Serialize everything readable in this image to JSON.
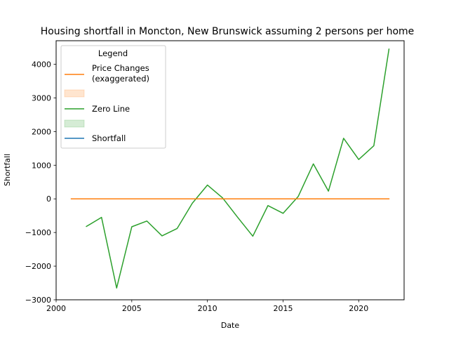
{
  "chart_data": {
    "type": "line",
    "title": "Housing shortfall in Moncton, New Brunswick assuming 2 persons per home",
    "xlabel": "Date",
    "ylabel": "Shortfall",
    "xlim": [
      2000,
      2023
    ],
    "ylim": [
      -3000,
      4700
    ],
    "xticks": [
      2000,
      2005,
      2010,
      2015,
      2020
    ],
    "xtick_labels": [
      "2000",
      "2005",
      "2010",
      "2015",
      "2020"
    ],
    "yticks": [
      -3000,
      -2000,
      -1000,
      0,
      1000,
      2000,
      3000,
      4000
    ],
    "ytick_labels": [
      "−3000",
      "−2000",
      "−1000",
      "0",
      "1000",
      "2000",
      "3000",
      "4000"
    ],
    "grid": false,
    "legend": {
      "title": "Legend",
      "placement": "upper-left",
      "entries": [
        {
          "label": "Price Changes\n(exaggerated)",
          "kind": "line",
          "color": "#ff7f0e"
        },
        {
          "label": "",
          "kind": "patch",
          "color": "#ff7f0e"
        },
        {
          "label": "Zero Line",
          "kind": "line",
          "color": "#2ca02c"
        },
        {
          "label": "",
          "kind": "patch",
          "color": "#2ca02c"
        },
        {
          "label": "Shortfall",
          "kind": "line",
          "color": "#1f77b4"
        }
      ]
    },
    "series": [
      {
        "color": "#2ca02c",
        "x": [
          2002,
          2003,
          2004,
          2005,
          2006,
          2007,
          2008,
          2009,
          2010,
          2011,
          2012,
          2013,
          2014,
          2015,
          2016,
          2017,
          2018,
          2019,
          2020,
          2021,
          2022
        ],
        "values": [
          -820,
          -550,
          -2650,
          -830,
          -660,
          -1100,
          -880,
          -130,
          410,
          30,
          -550,
          -1110,
          -200,
          -430,
          70,
          1040,
          230,
          1800,
          1170,
          1580,
          4450
        ]
      },
      {
        "color": "#ff7f0e",
        "x": [
          2001,
          2022
        ],
        "values": [
          0,
          0
        ]
      }
    ]
  }
}
